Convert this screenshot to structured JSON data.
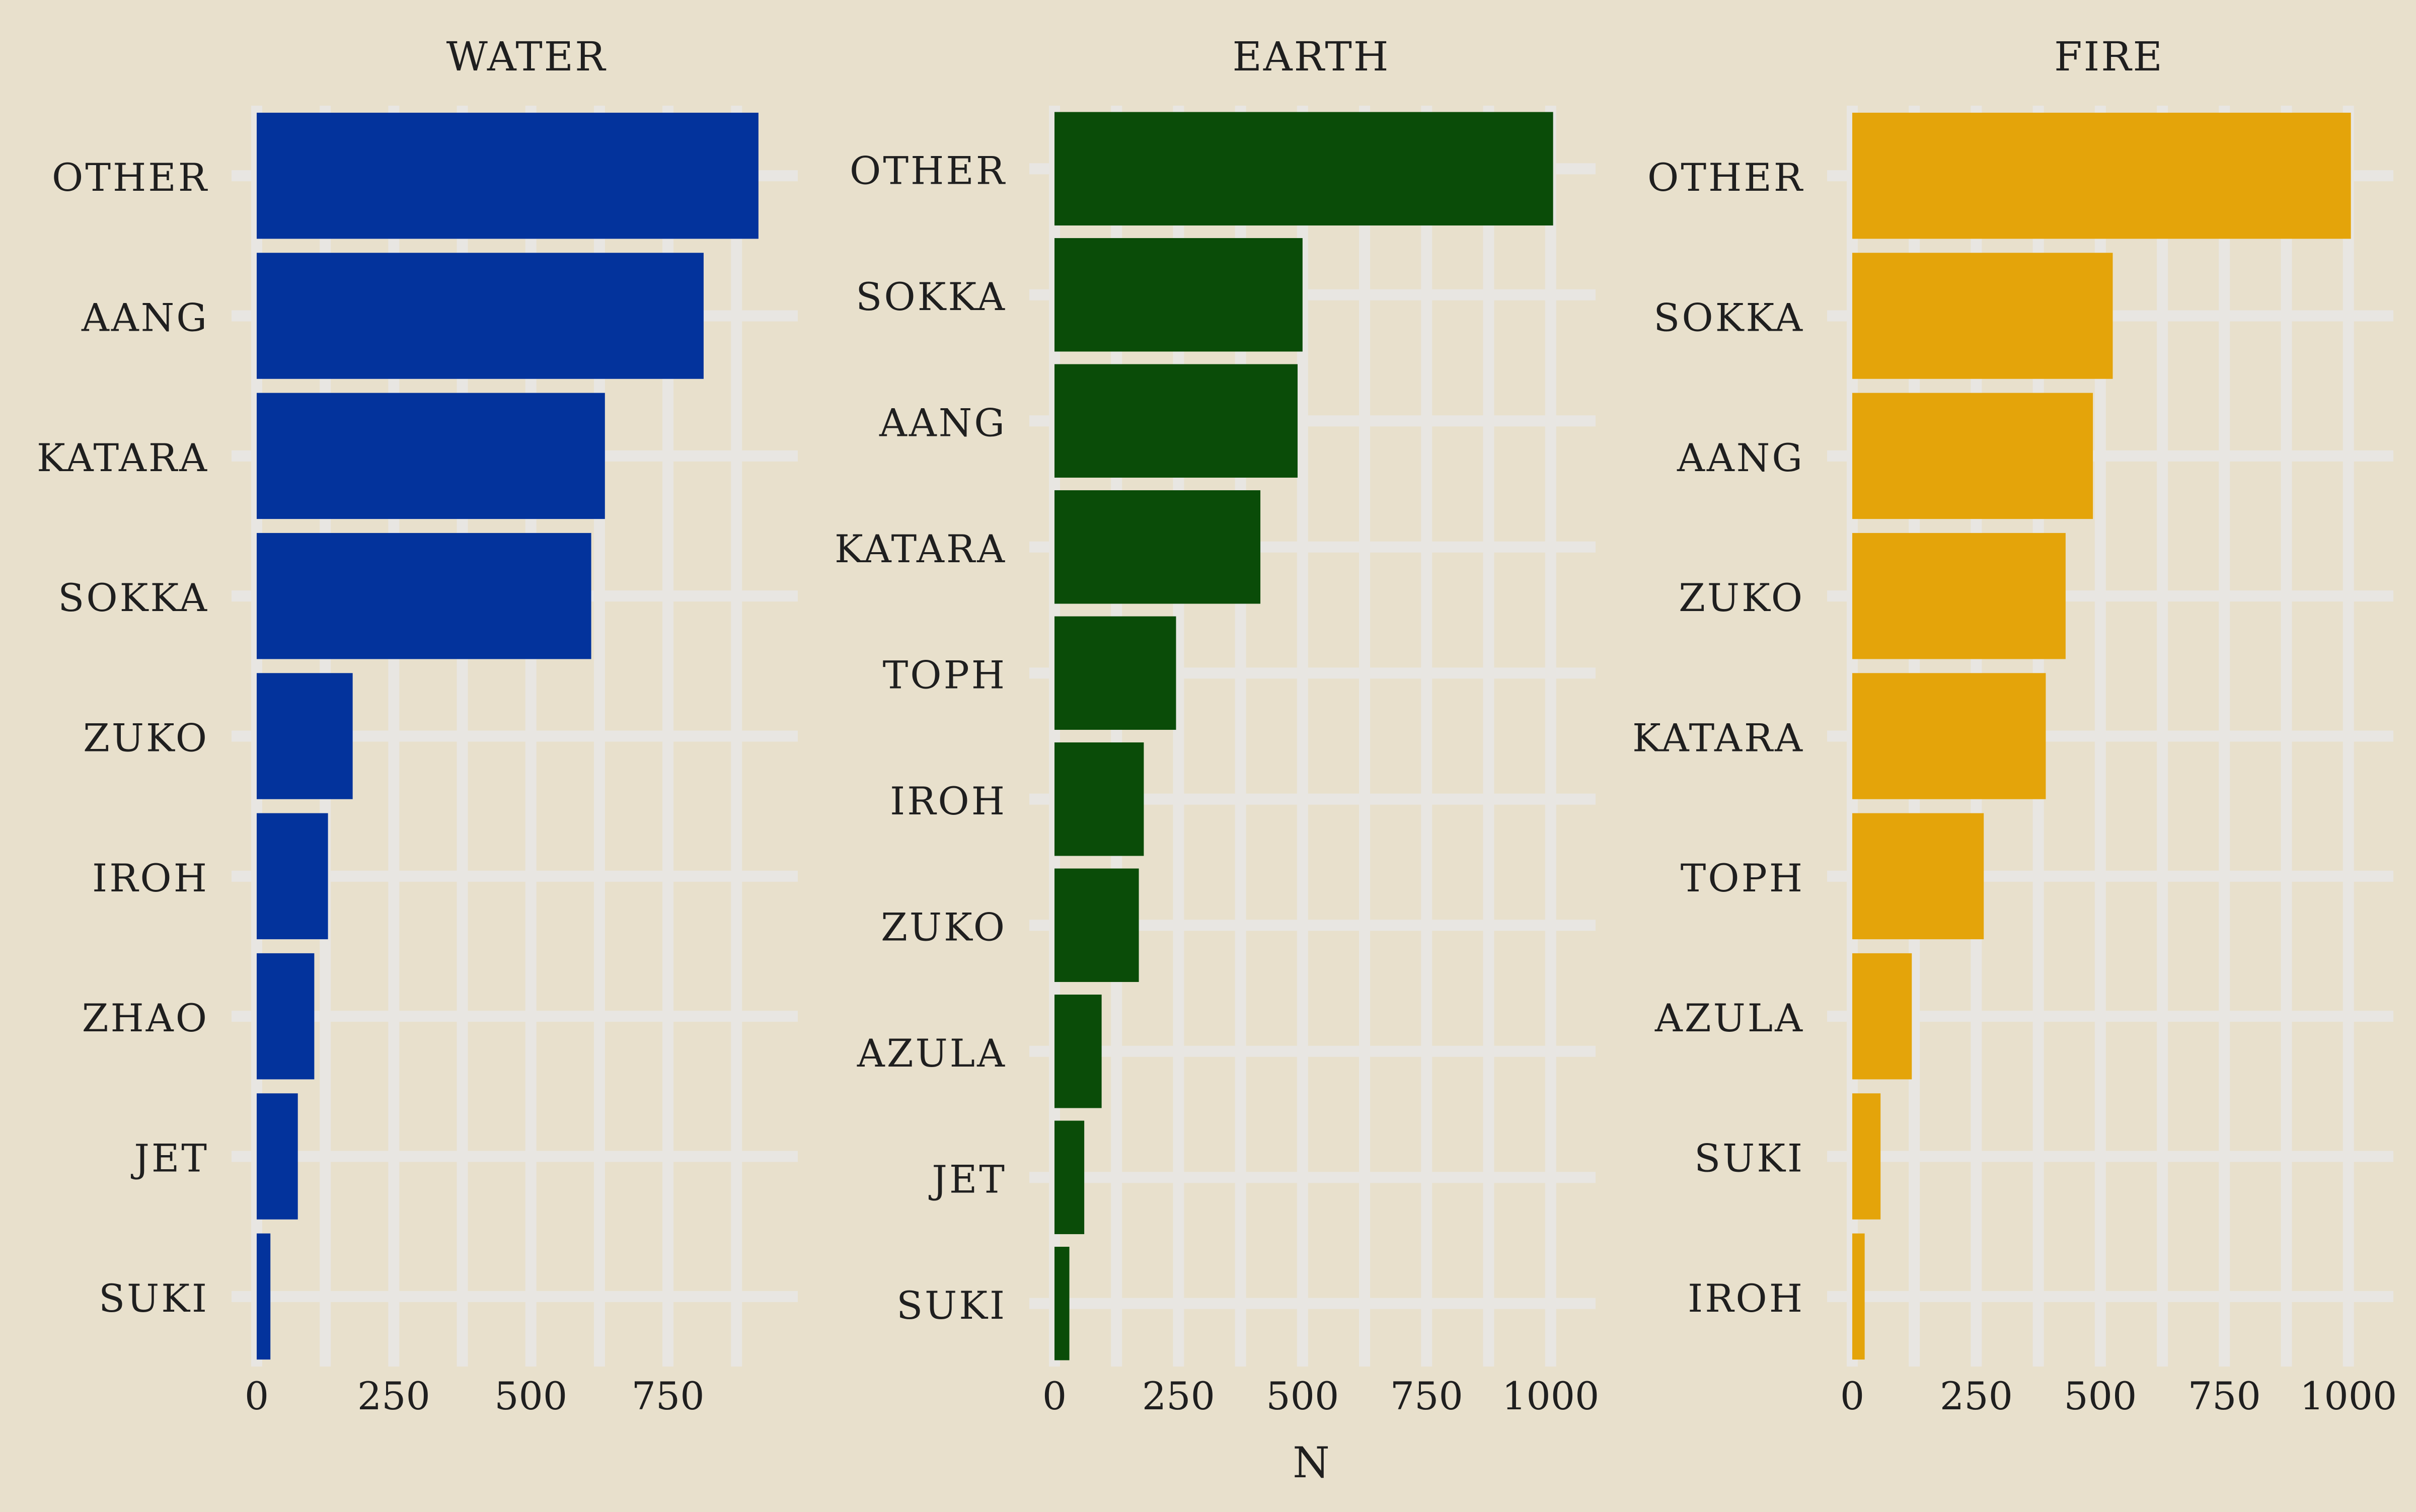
{
  "chart_data": [
    {
      "type": "bar",
      "orientation": "horizontal",
      "title": "Water",
      "categories": [
        "Other",
        "Aang",
        "Katara",
        "Sokka",
        "Zuko",
        "Iroh",
        "Zhao",
        "Jet",
        "Suki"
      ],
      "values": [
        915,
        815,
        635,
        610,
        175,
        130,
        105,
        75,
        25
      ],
      "xlim": [
        0,
        950
      ],
      "x_ticks": [
        0,
        250,
        500,
        750
      ],
      "color": "#03339c",
      "grid": true
    },
    {
      "type": "bar",
      "orientation": "horizontal",
      "title": "Earth",
      "categories": [
        "Other",
        "Sokka",
        "Aang",
        "Katara",
        "Toph",
        "Iroh",
        "Zuko",
        "Azula",
        "Jet",
        "Suki"
      ],
      "values": [
        1005,
        500,
        490,
        415,
        245,
        180,
        170,
        95,
        60,
        30
      ],
      "xlim": [
        0,
        1050
      ],
      "x_ticks": [
        0,
        250,
        500,
        750,
        1000
      ],
      "color": "#0a4c08",
      "grid": true
    },
    {
      "type": "bar",
      "orientation": "horizontal",
      "title": "Fire",
      "categories": [
        "Other",
        "Sokka",
        "Aang",
        "Zuko",
        "Katara",
        "Toph",
        "Azula",
        "Suki",
        "Iroh"
      ],
      "values": [
        1005,
        525,
        485,
        430,
        390,
        265,
        120,
        57,
        25
      ],
      "xlim": [
        0,
        1050
      ],
      "x_ticks": [
        0,
        250,
        500,
        750,
        1000
      ],
      "color": "#e4a40a",
      "grid": true
    }
  ],
  "xlabel": "N",
  "colors": {
    "background": "#e8e0cc",
    "grid": "#e8e6e2",
    "text": "#1f1f1f"
  }
}
